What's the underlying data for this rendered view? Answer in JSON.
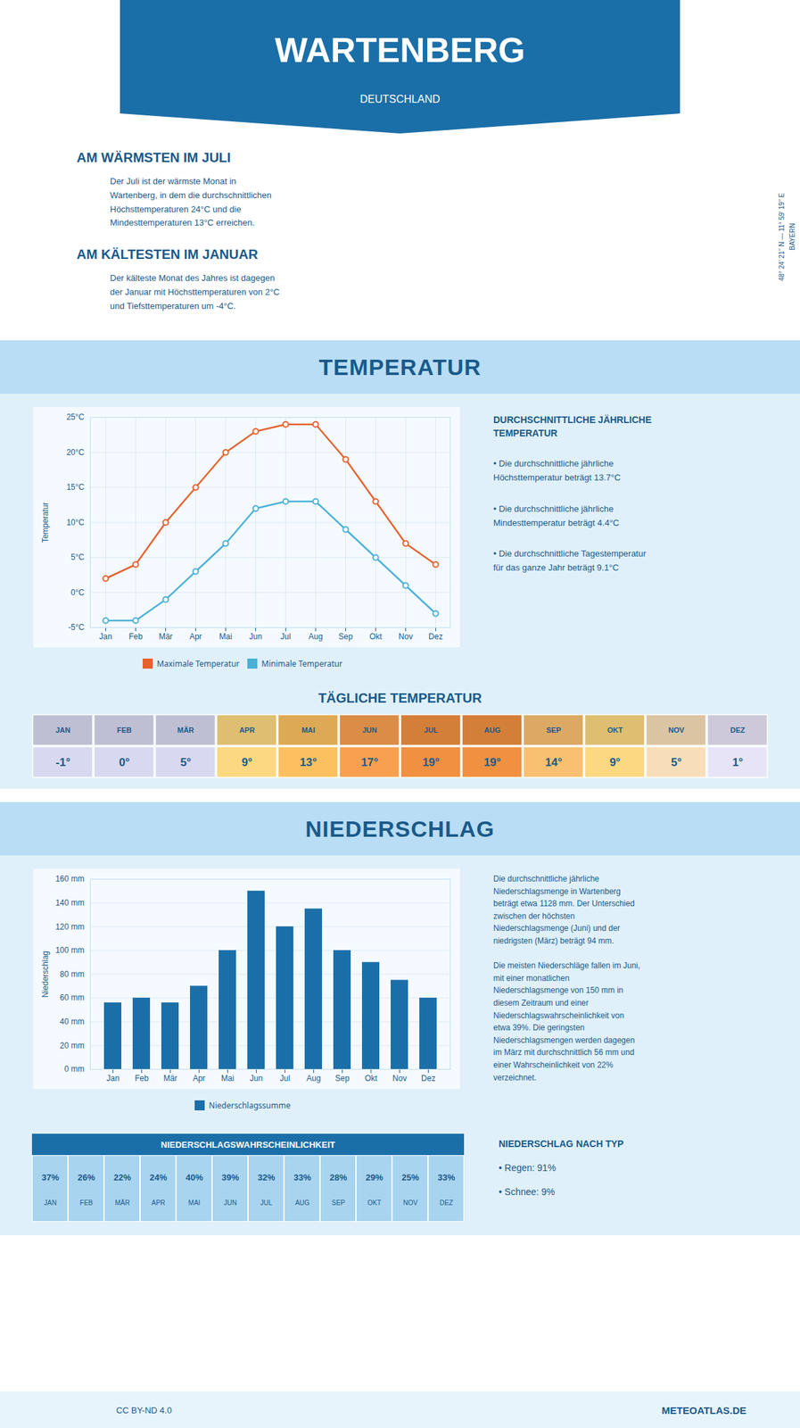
{
  "title": "WARTENBERG",
  "subtitle": "DEUTSCHLAND",
  "annotations": [
    "48° 24’ 21’’ N — 11° 59’ 19’’ E",
    "BAYERN",
    "CC BY-ND 4.0",
    "METEOATLAS.DE"
  ],
  "chart_data": [
    {
      "type": "text",
      "title": "AM WÄRMSTEN IM JULI",
      "annotations": [
        "Der Juli ist der wärmste Monat in\nWartenberg, in dem die durchschnittlichen\nHöchsttemperaturen 24°C und die\nMindesttemperaturen 13°C erreichen."
      ]
    },
    {
      "type": "text",
      "title": "AM KÄLTESTEN IM JANUAR",
      "annotations": [
        "Der kälteste Monat des Jahres ist dagegen\nder Januar mit Höchsttemperaturen von 2°C\nund Tiefsttemperaturen um -4°C."
      ]
    },
    {
      "type": "line",
      "title": "TEMPERATUR",
      "categories": [
        "Jan",
        "Feb",
        "Mär",
        "Apr",
        "Mai",
        "Jun",
        "Jul",
        "Aug",
        "Sep",
        "Okt",
        "Nov",
        "Dez"
      ],
      "series": [
        {
          "name": "Maximale Temperatur",
          "color": "#e8602c",
          "marker": "circle",
          "values": [
            2,
            4,
            10,
            15,
            20,
            23,
            24,
            24,
            19,
            13,
            7,
            4
          ]
        },
        {
          "name": "Minimale Temperatur",
          "color": "#4ab0d8",
          "marker": "circle",
          "values": [
            -4,
            -4,
            -1,
            3,
            7,
            12,
            13,
            13,
            9,
            5,
            1,
            -3
          ]
        }
      ],
      "ylim": [
        -5,
        25
      ],
      "yticks": [
        {
          "value": -5,
          "label": "-5°C"
        },
        {
          "value": 0,
          "label": "0°C"
        },
        {
          "value": 5,
          "label": "5°C"
        },
        {
          "value": 10,
          "label": "10°C"
        },
        {
          "value": 15,
          "label": "15°C"
        },
        {
          "value": 20,
          "label": "20°C"
        },
        {
          "value": 25,
          "label": "25°C"
        }
      ],
      "y_label": "Temperatur",
      "grid": true,
      "legend": "bottom"
    },
    {
      "type": "text",
      "title": "DURCHSCHNITTLICHE JÄHRLICHE\nTEMPERATUR",
      "annotations": [
        "• Die durchschnittliche jährliche\nHöchsttemperatur beträgt 13.7°C",
        "• Die durchschnittliche jährliche\nMindesttemperatur beträgt 4.4°C",
        "• Die durchschnittliche Tagestemperatur\nfür das ganze Jahr beträgt 9.1°C"
      ]
    },
    {
      "type": "table",
      "title": "TÄGLICHE TEMPERATUR",
      "categories": [
        "JAN",
        "FEB",
        "MÄR",
        "APR",
        "MAI",
        "JUN",
        "JUL",
        "AUG",
        "SEP",
        "OKT",
        "NOV",
        "DEZ"
      ],
      "values": [
        -1,
        0,
        5,
        9,
        13,
        17,
        19,
        19,
        14,
        9,
        5,
        1
      ],
      "value_labels": [
        "-1°",
        "0°",
        "5°",
        "9°",
        "13°",
        "17°",
        "19°",
        "19°",
        "14°",
        "9°",
        "5°",
        "1°"
      ],
      "colors": [
        "#d8d8f0",
        "#d8d8f0",
        "#d8d8f0",
        "#fcd880",
        "#fcc060",
        "#f8a050",
        "#f09040",
        "#f09040",
        "#f8c070",
        "#fcd880",
        "#f8deb8",
        "#e8e4f8"
      ]
    },
    {
      "type": "bar",
      "title": "NIEDERSCHLAG",
      "categories": [
        "Jan",
        "Feb",
        "Mär",
        "Apr",
        "Mai",
        "Jun",
        "Jul",
        "Aug",
        "Sep",
        "Okt",
        "Nov",
        "Dez"
      ],
      "series": [
        {
          "name": "Niederschlagssumme",
          "color": "#1b6fa8",
          "values": [
            56,
            60,
            56,
            70,
            100,
            150,
            120,
            135,
            100,
            90,
            75,
            60
          ]
        }
      ],
      "ylim": [
        0,
        160
      ],
      "yticks": [
        {
          "value": 0,
          "label": "0 mm"
        },
        {
          "value": 20,
          "label": "20 mm"
        },
        {
          "value": 40,
          "label": "40 mm"
        },
        {
          "value": 60,
          "label": "60 mm"
        },
        {
          "value": 80,
          "label": "80 mm"
        },
        {
          "value": 100,
          "label": "100 mm"
        },
        {
          "value": 120,
          "label": "120 mm"
        },
        {
          "value": 140,
          "label": "140 mm"
        },
        {
          "value": 160,
          "label": "160 mm"
        }
      ],
      "y_label": "Niederschlag",
      "grid": "y",
      "legend": "bottom",
      "annotations": [
        "Die durchschnittliche jährliche\nNiederschlagsmenge in Wartenberg\nbeträgt etwa 1128 mm. Der Unterschied\nzwischen der höchsten\nNiederschlagsmenge (Juni) und der\nniedrigsten (März) beträgt 94 mm.\n\nDie meisten Niederschläge fallen im Juni,\nmit einer monatlichen\nNiederschlagsmenge von 150 mm in\ndiesem Zeitraum und einer\nNiederschlagswahrscheinlichkeit von\netwa 39%. Die geringsten\nNiederschlagsmengen werden dagegen\nim März mit durchschnittlich 56 mm und\neiner Wahrscheinlichkeit von 22%\nverzeichnet."
      ]
    },
    {
      "type": "table",
      "title": "NIEDERSCHLAGSWAHRSCHEINLICHKEIT",
      "categories": [
        "JAN",
        "FEB",
        "MÄR",
        "APR",
        "MAI",
        "JUN",
        "JUL",
        "AUG",
        "SEP",
        "OKT",
        "NOV",
        "DEZ"
      ],
      "values": [
        37,
        26,
        22,
        24,
        40,
        39,
        32,
        33,
        28,
        29,
        25,
        33
      ],
      "value_labels": [
        "37%",
        "26%",
        "22%",
        "24%",
        "40%",
        "39%",
        "32%",
        "33%",
        "28%",
        "29%",
        "25%",
        "33%"
      ],
      "color": "#a8d4f0"
    },
    {
      "type": "text",
      "title": "NIEDERSCHLAG NACH TYP",
      "annotations": [
        "• Regen: 91%",
        "• Schnee: 9%"
      ]
    }
  ]
}
